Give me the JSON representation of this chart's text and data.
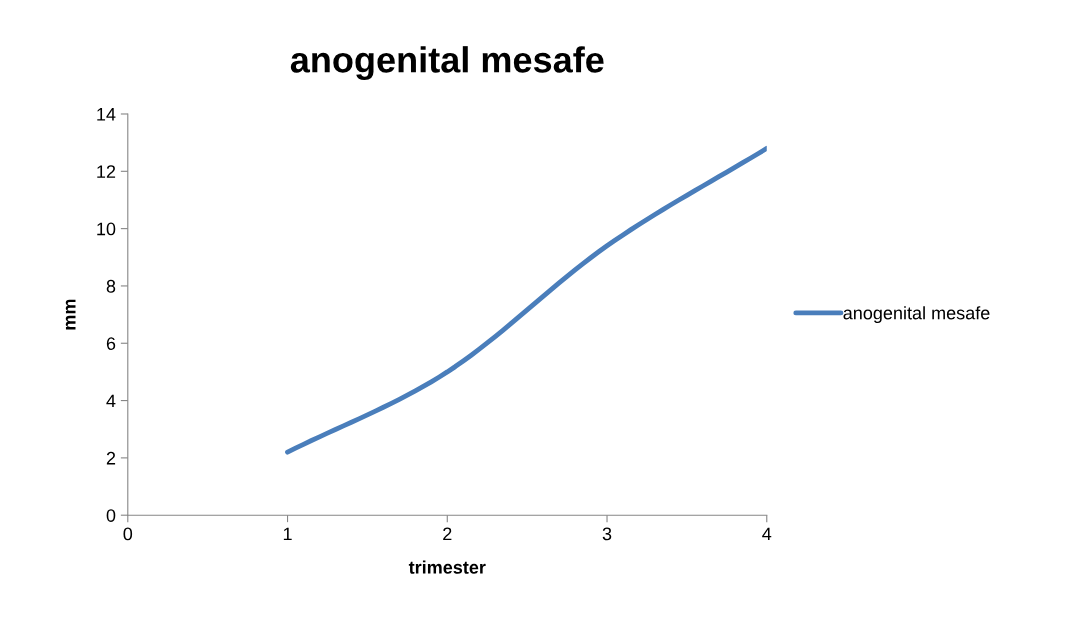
{
  "chart_data": {
    "type": "line",
    "title": "anogenital mesafe",
    "xlabel": "trimester",
    "ylabel": "mm",
    "x": [
      1,
      2,
      3,
      4
    ],
    "series": [
      {
        "name": "anogenital mesafe",
        "color": "#4a7ebb",
        "values": [
          2.2,
          5.0,
          9.4,
          12.8
        ]
      }
    ],
    "xlim": [
      0,
      4
    ],
    "xticks": [
      0,
      1,
      2,
      3,
      4
    ],
    "ylim": [
      0,
      14
    ],
    "yticks": [
      0,
      2,
      4,
      6,
      8,
      10,
      12,
      14
    ],
    "grid": false,
    "legend": "right",
    "marker": "none",
    "line_style": "solid"
  }
}
